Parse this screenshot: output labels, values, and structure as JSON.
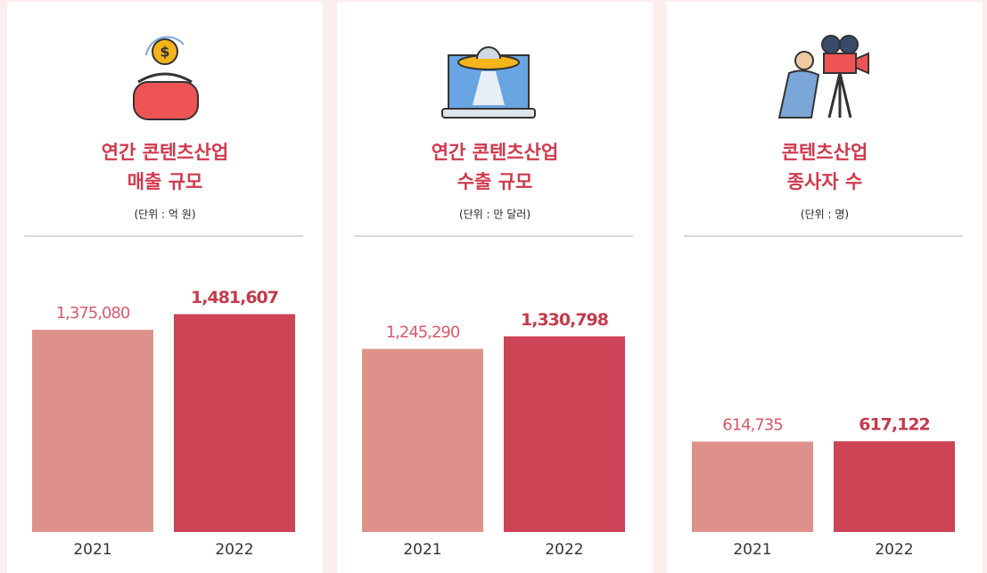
{
  "chart_data": [
    {
      "type": "bar",
      "title": [
        "연간 콘텐츠산업",
        "매출 규모"
      ],
      "unit": "(단위 : 억 원)",
      "categories": [
        "2021",
        "2022"
      ],
      "values": [
        1375080,
        1481607
      ],
      "value_labels": [
        "1,375,080",
        "1,481,607"
      ],
      "colors": [
        "#de918a",
        "#cc4455"
      ],
      "ylim": [
        0,
        1800000
      ]
    },
    {
      "type": "bar",
      "title": [
        "연간 콘텐츠산업",
        "수출 규모"
      ],
      "unit": "(단위 : 만 달러)",
      "categories": [
        "2021",
        "2022"
      ],
      "values": [
        1245290,
        1330798
      ],
      "value_labels": [
        "1,245,290",
        "1,330,798"
      ],
      "colors": [
        "#de918a",
        "#cc4455"
      ],
      "ylim": [
        0,
        1800000
      ]
    },
    {
      "type": "bar",
      "title": [
        "콘텐츠산업",
        "종사자 수"
      ],
      "unit": "(단위 : 명)",
      "categories": [
        "2021",
        "2022"
      ],
      "values": [
        614735,
        617122
      ],
      "value_labels": [
        "614,735",
        "617,122"
      ],
      "colors": [
        "#de918a",
        "#cc4455"
      ],
      "ylim": [
        0,
        1800000
      ]
    }
  ]
}
